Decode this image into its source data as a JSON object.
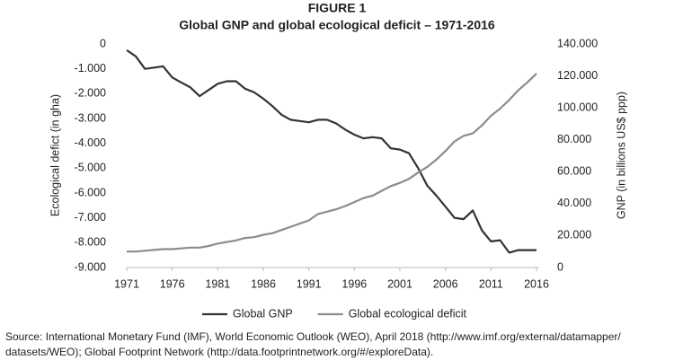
{
  "chart_data": {
    "type": "line",
    "title": "FIGURE 1",
    "subtitle": "Global GNP and global ecological deficit – 1971-2016",
    "ylabel": "Ecological defict (in gha)",
    "y2label": "GNP (in billions US$ ppp)",
    "x": [
      1971,
      1972,
      1973,
      1974,
      1975,
      1976,
      1977,
      1978,
      1979,
      1980,
      1981,
      1982,
      1983,
      1984,
      1985,
      1986,
      1987,
      1988,
      1989,
      1990,
      1991,
      1992,
      1993,
      1994,
      1995,
      1996,
      1997,
      1998,
      1999,
      2000,
      2001,
      2002,
      2003,
      2004,
      2005,
      2006,
      2007,
      2008,
      2009,
      2010,
      2011,
      2012,
      2013,
      2014,
      2015,
      2016
    ],
    "xlim": [
      1971,
      2016
    ],
    "xticks": [
      1971,
      1976,
      1981,
      1986,
      1991,
      1996,
      2001,
      2006,
      2011,
      2016
    ],
    "ylim": [
      -9000,
      0
    ],
    "yticks": [
      {
        "value": 0,
        "label": "0"
      },
      {
        "value": -1000,
        "label": "-1.000"
      },
      {
        "value": -2000,
        "label": "-2.000"
      },
      {
        "value": -3000,
        "label": "-3.000"
      },
      {
        "value": -4000,
        "label": "-4.000"
      },
      {
        "value": -5000,
        "label": "-5.000"
      },
      {
        "value": -6000,
        "label": "-6.000"
      },
      {
        "value": -7000,
        "label": "-7.000"
      },
      {
        "value": -8000,
        "label": "-8.000"
      },
      {
        "value": -9000,
        "label": "-9.000"
      }
    ],
    "y2lim": [
      0,
      140000
    ],
    "y2ticks": [
      0,
      {
        "value": 20000,
        "label": "20.000"
      },
      {
        "value": 40000,
        "label": "40.000"
      },
      {
        "value": 60000,
        "label": "60.000"
      },
      {
        "value": 80000,
        "label": "80.000"
      },
      {
        "value": 100000,
        "label": "100.000"
      },
      {
        "value": 120000,
        "label": "120.000"
      },
      {
        "value": 140000,
        "label": "140.000"
      }
    ],
    "grid": false,
    "legend": "bottom",
    "series": [
      {
        "name": "Global GNP",
        "color": "#333333",
        "axis": "y",
        "values": [
          -250,
          -500,
          -1000,
          -950,
          -900,
          -1350,
          -1550,
          -1750,
          -2100,
          -1850,
          -1600,
          -1500,
          -1500,
          -1800,
          -1950,
          -2200,
          -2500,
          -2850,
          -3050,
          -3100,
          -3150,
          -3050,
          -3050,
          -3200,
          -3450,
          -3650,
          -3800,
          -3750,
          -3800,
          -4200,
          -4250,
          -4400,
          -5000,
          -5700,
          -6100,
          -6550,
          -7000,
          -7050,
          -6700,
          -7500,
          -7950,
          -7900,
          -8400,
          -8300,
          -8300,
          -8300
        ]
      },
      {
        "name": "Global ecological deficit",
        "color": "#8c8c8c",
        "axis": "y2",
        "values": [
          10000,
          10000,
          10500,
          11000,
          11500,
          11500,
          12000,
          12500,
          12500,
          13500,
          15000,
          16000,
          17000,
          18500,
          19000,
          20500,
          21500,
          23500,
          25500,
          27500,
          29500,
          33500,
          35000,
          36500,
          38500,
          41000,
          43500,
          45000,
          48000,
          51000,
          53000,
          55500,
          59500,
          63000,
          67500,
          73000,
          79000,
          82500,
          84000,
          89000,
          95000,
          99500,
          105000,
          111000,
          116000,
          121500
        ]
      }
    ]
  },
  "source": [
    "Source: International Monetary Fund (IMF), World Economic Outlook (WEO), April 2018 (http://www.imf.org/external/datamapper/",
    "datasets/WEO); Global Footprint Network (http://data.footprintnetwork.org/#/exploreData)."
  ]
}
